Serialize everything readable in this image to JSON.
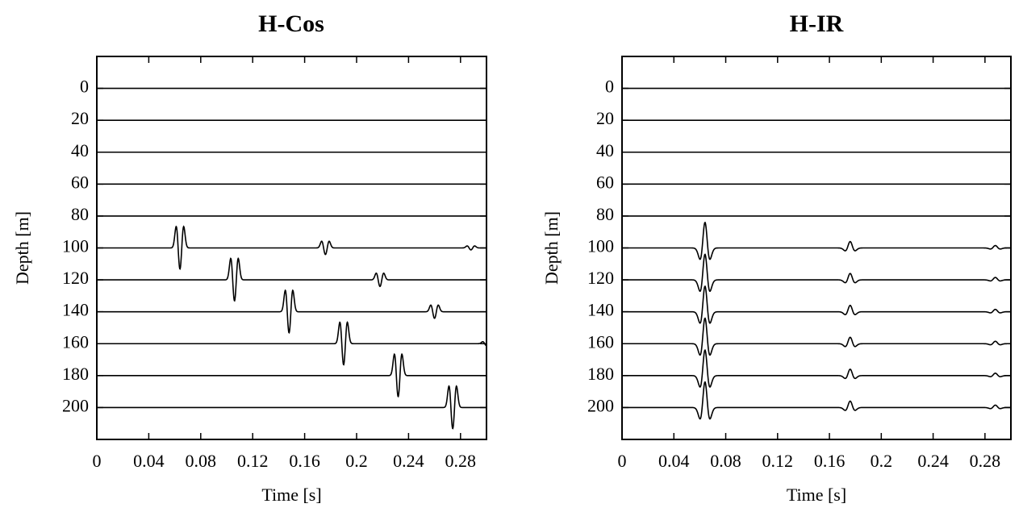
{
  "chart_data": [
    {
      "type": "line",
      "title": "H-Cos",
      "xlabel": "Time [s]",
      "ylabel": "Depth [m]",
      "xlim": [
        0,
        0.3
      ],
      "ylim": [
        -20,
        220
      ],
      "y_inverted": true,
      "xticks": [
        0,
        0.04,
        0.08,
        0.12,
        0.16,
        0.2,
        0.24,
        0.28
      ],
      "xtick_labels": [
        "0",
        "0.04",
        "0.08",
        "0.12",
        "0.16",
        "0.2",
        "0.24",
        "0.28"
      ],
      "yticks": [
        0,
        20,
        40,
        60,
        80,
        100,
        120,
        140,
        160,
        180,
        200
      ],
      "ytick_labels": [
        "0",
        "20",
        "40",
        "60",
        "80",
        "100",
        "120",
        "140",
        "160",
        "180",
        "200"
      ],
      "grid": false,
      "line_color": "#000000",
      "traces": [
        {
          "depth": 0,
          "pulses": []
        },
        {
          "depth": 20,
          "pulses": []
        },
        {
          "depth": 40,
          "pulses": []
        },
        {
          "depth": 60,
          "pulses": []
        },
        {
          "depth": 80,
          "pulses": []
        },
        {
          "depth": 100,
          "pulses": [
            {
              "t": 0.064,
              "amp": 16,
              "shape": "doublet"
            },
            {
              "t": 0.176,
              "amp": 5,
              "shape": "doublet"
            },
            {
              "t": 0.288,
              "amp": 1.5,
              "shape": "doublet"
            }
          ]
        },
        {
          "depth": 120,
          "pulses": [
            {
              "t": 0.106,
              "amp": 16,
              "shape": "doublet"
            },
            {
              "t": 0.218,
              "amp": 5,
              "shape": "doublet"
            }
          ]
        },
        {
          "depth": 140,
          "pulses": [
            {
              "t": 0.148,
              "amp": 16,
              "shape": "doublet"
            },
            {
              "t": 0.26,
              "amp": 5,
              "shape": "doublet"
            }
          ]
        },
        {
          "depth": 160,
          "pulses": [
            {
              "t": 0.19,
              "amp": 16,
              "shape": "doublet"
            },
            {
              "t": 0.3,
              "amp": 1.5,
              "shape": "doublet"
            }
          ]
        },
        {
          "depth": 180,
          "pulses": [
            {
              "t": 0.232,
              "amp": 16,
              "shape": "doublet"
            }
          ]
        },
        {
          "depth": 200,
          "pulses": [
            {
              "t": 0.274,
              "amp": 16,
              "shape": "doublet"
            }
          ]
        }
      ]
    },
    {
      "type": "line",
      "title": "H-IR",
      "xlabel": "Time [s]",
      "ylabel": "Depth [m]",
      "xlim": [
        0,
        0.3
      ],
      "ylim": [
        -20,
        220
      ],
      "y_inverted": true,
      "xticks": [
        0,
        0.04,
        0.08,
        0.12,
        0.16,
        0.2,
        0.24,
        0.28
      ],
      "xtick_labels": [
        "0",
        "0.04",
        "0.08",
        "0.12",
        "0.16",
        "0.2",
        "0.24",
        "0.28"
      ],
      "yticks": [
        0,
        20,
        40,
        60,
        80,
        100,
        120,
        140,
        160,
        180,
        200
      ],
      "ytick_labels": [
        "0",
        "20",
        "40",
        "60",
        "80",
        "100",
        "120",
        "140",
        "160",
        "180",
        "200"
      ],
      "grid": false,
      "line_color": "#000000",
      "traces": [
        {
          "depth": 0,
          "pulses": []
        },
        {
          "depth": 20,
          "pulses": []
        },
        {
          "depth": 40,
          "pulses": []
        },
        {
          "depth": 60,
          "pulses": []
        },
        {
          "depth": 80,
          "pulses": []
        },
        {
          "depth": 100,
          "pulses": [
            {
              "t": 0.064,
              "amp": 16,
              "shape": "ricker"
            },
            {
              "t": 0.176,
              "amp": 4,
              "shape": "ricker"
            },
            {
              "t": 0.288,
              "amp": 1.5,
              "shape": "ricker"
            }
          ]
        },
        {
          "depth": 120,
          "pulses": [
            {
              "t": 0.064,
              "amp": 16,
              "shape": "ricker"
            },
            {
              "t": 0.176,
              "amp": 4,
              "shape": "ricker"
            },
            {
              "t": 0.288,
              "amp": 1.5,
              "shape": "ricker"
            }
          ]
        },
        {
          "depth": 140,
          "pulses": [
            {
              "t": 0.064,
              "amp": 16,
              "shape": "ricker"
            },
            {
              "t": 0.176,
              "amp": 4,
              "shape": "ricker"
            },
            {
              "t": 0.288,
              "amp": 1.5,
              "shape": "ricker"
            }
          ]
        },
        {
          "depth": 160,
          "pulses": [
            {
              "t": 0.064,
              "amp": 16,
              "shape": "ricker"
            },
            {
              "t": 0.176,
              "amp": 4,
              "shape": "ricker"
            },
            {
              "t": 0.288,
              "amp": 1.5,
              "shape": "ricker"
            }
          ]
        },
        {
          "depth": 180,
          "pulses": [
            {
              "t": 0.064,
              "amp": 16,
              "shape": "ricker"
            },
            {
              "t": 0.176,
              "amp": 4,
              "shape": "ricker"
            },
            {
              "t": 0.288,
              "amp": 1.5,
              "shape": "ricker"
            }
          ]
        },
        {
          "depth": 200,
          "pulses": [
            {
              "t": 0.064,
              "amp": 16,
              "shape": "ricker"
            },
            {
              "t": 0.176,
              "amp": 4,
              "shape": "ricker"
            },
            {
              "t": 0.288,
              "amp": 1.5,
              "shape": "ricker"
            }
          ]
        }
      ]
    }
  ]
}
